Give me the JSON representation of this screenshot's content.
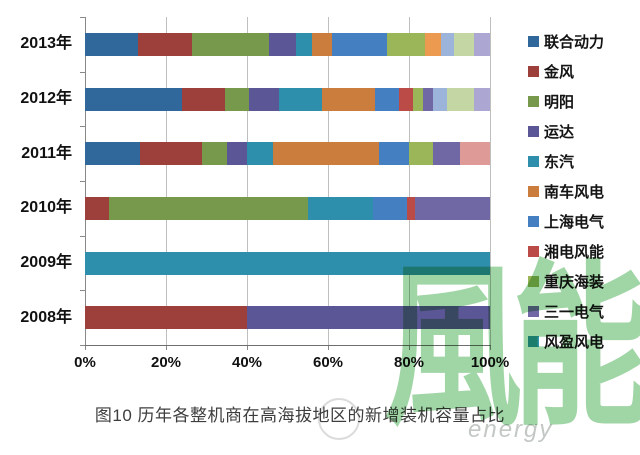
{
  "caption": "图10 历年各整机商在高海拔地区的新增装机容量占比",
  "watermark": {
    "text": "風能",
    "subtext": "energy",
    "color": "#85c98b"
  },
  "chart_data": {
    "type": "bar",
    "orientation": "horizontal",
    "stacked": true,
    "unit": "%",
    "title": "图10 历年各整机商在高海拔地区的新增装机容量占比",
    "categories": [
      "2013年",
      "2012年",
      "2011年",
      "2010年",
      "2009年",
      "2008年"
    ],
    "x_ticks": [
      "0%",
      "20%",
      "40%",
      "60%",
      "80%",
      "100%"
    ],
    "xlim": [
      0,
      100
    ],
    "grid": "vertical",
    "legend_position": "right",
    "series": [
      {
        "name": "联合动力",
        "color": "#31689B",
        "in_legend": true,
        "values": [
          13,
          24,
          13.5,
          0,
          0,
          0
        ]
      },
      {
        "name": "金风",
        "color": "#9D3F3A",
        "in_legend": true,
        "values": [
          13.5,
          10.5,
          15.5,
          6,
          0,
          40
        ]
      },
      {
        "name": "明阳",
        "color": "#77994C",
        "in_legend": true,
        "values": [
          19,
          6,
          6,
          49,
          0,
          0
        ]
      },
      {
        "name": "运达",
        "color": "#5B5695",
        "in_legend": true,
        "values": [
          6.5,
          7.5,
          5,
          0,
          0,
          60
        ]
      },
      {
        "name": "东汽",
        "color": "#2E8FAD",
        "in_legend": true,
        "values": [
          4,
          10.5,
          6.5,
          16,
          100,
          0
        ]
      },
      {
        "name": "南车风电",
        "color": "#CB7D3E",
        "in_legend": true,
        "values": [
          5,
          13,
          26,
          0,
          0,
          0
        ]
      },
      {
        "name": "上海电气",
        "color": "#447FC1",
        "in_legend": true,
        "values": [
          13.5,
          6,
          7.5,
          8.5,
          0,
          0
        ]
      },
      {
        "name": "湘电风能",
        "color": "#BA4B46",
        "in_legend": true,
        "values": [
          0,
          3.5,
          0,
          2,
          0,
          0
        ]
      },
      {
        "name": "重庆海装",
        "color": "#9BB559",
        "in_legend": true,
        "values": [
          9.5,
          2.5,
          6,
          0,
          0,
          0
        ]
      },
      {
        "name": "三一电气",
        "color": "#6F68A5",
        "in_legend": true,
        "values": [
          0,
          2.5,
          6.5,
          18.5,
          0,
          0
        ]
      },
      {
        "name": "风盈风电",
        "color": "#2E96A8",
        "in_legend": true,
        "values": [
          0,
          0,
          0,
          0,
          0,
          0
        ]
      },
      {
        "name": "",
        "color": "#EC9A50",
        "in_legend": false,
        "values": [
          4,
          0,
          0,
          0,
          0,
          0
        ]
      },
      {
        "name": "",
        "color": "#9DB4DA",
        "in_legend": false,
        "values": [
          3,
          3.5,
          0,
          0,
          0,
          0
        ]
      },
      {
        "name": "",
        "color": "#DD9A97",
        "in_legend": false,
        "values": [
          0,
          0,
          7.5,
          0,
          0,
          0
        ]
      },
      {
        "name": "",
        "color": "#C4D6A4",
        "in_legend": false,
        "values": [
          5,
          6.5,
          0,
          0,
          0,
          0
        ]
      },
      {
        "name": "",
        "color": "#ACA6D2",
        "in_legend": false,
        "values": [
          4,
          4,
          0,
          0,
          0,
          0
        ]
      }
    ]
  }
}
